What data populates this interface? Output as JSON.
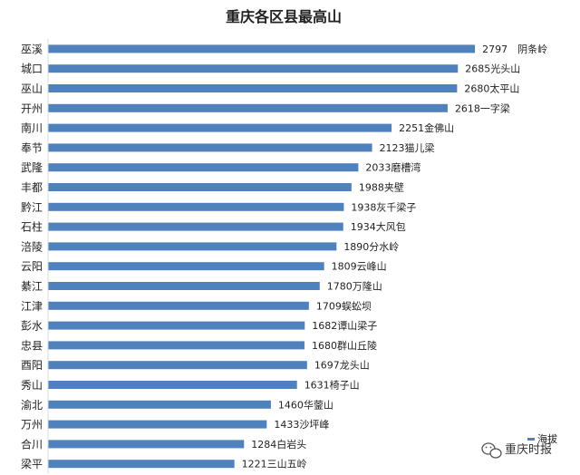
{
  "chart_data": {
    "type": "bar",
    "orientation": "horizontal",
    "title": "重庆各区县最高山",
    "categories": [
      "巫溪",
      "城口",
      "巫山",
      "开州",
      "南川",
      "奉节",
      "武隆",
      "丰都",
      "黔江",
      "石柱",
      "涪陵",
      "云阳",
      "綦江",
      "江津",
      "彭水",
      "忠县",
      "酉阳",
      "秀山",
      "渝北",
      "万州",
      "合川",
      "梁平"
    ],
    "series": [
      {
        "name": "海拔",
        "color": "#4f81bd",
        "values": [
          2797,
          2685,
          2680,
          2618,
          2251,
          2123,
          2033,
          1988,
          1938,
          1934,
          1890,
          1809,
          1780,
          1709,
          1682,
          1680,
          1697,
          1631,
          1460,
          1433,
          1284,
          1221
        ],
        "point_labels": [
          "2797　阴条岭",
          "2685光头山",
          "2680太平山",
          "2618一字梁",
          "2251金佛山",
          "2123猫儿梁",
          "2033磨槽湾",
          "1988夹壁",
          "1938灰千梁子",
          "1934大风包",
          "1890分水岭",
          "1809云峰山",
          "1780万隆山",
          "1709蜈蚣坝",
          "1682谭山梁子",
          "1680群山丘陵",
          "1697龙头山",
          "1631椅子山",
          "1460华蓥山",
          "1433沙坪峰",
          "1284白岩头",
          "1221三山五岭"
        ]
      }
    ],
    "xlim": [
      0,
      3000
    ],
    "grid": false,
    "legend": "bottom-right"
  },
  "watermark": {
    "text": "重庆时报",
    "icon": "wechat-icon"
  }
}
